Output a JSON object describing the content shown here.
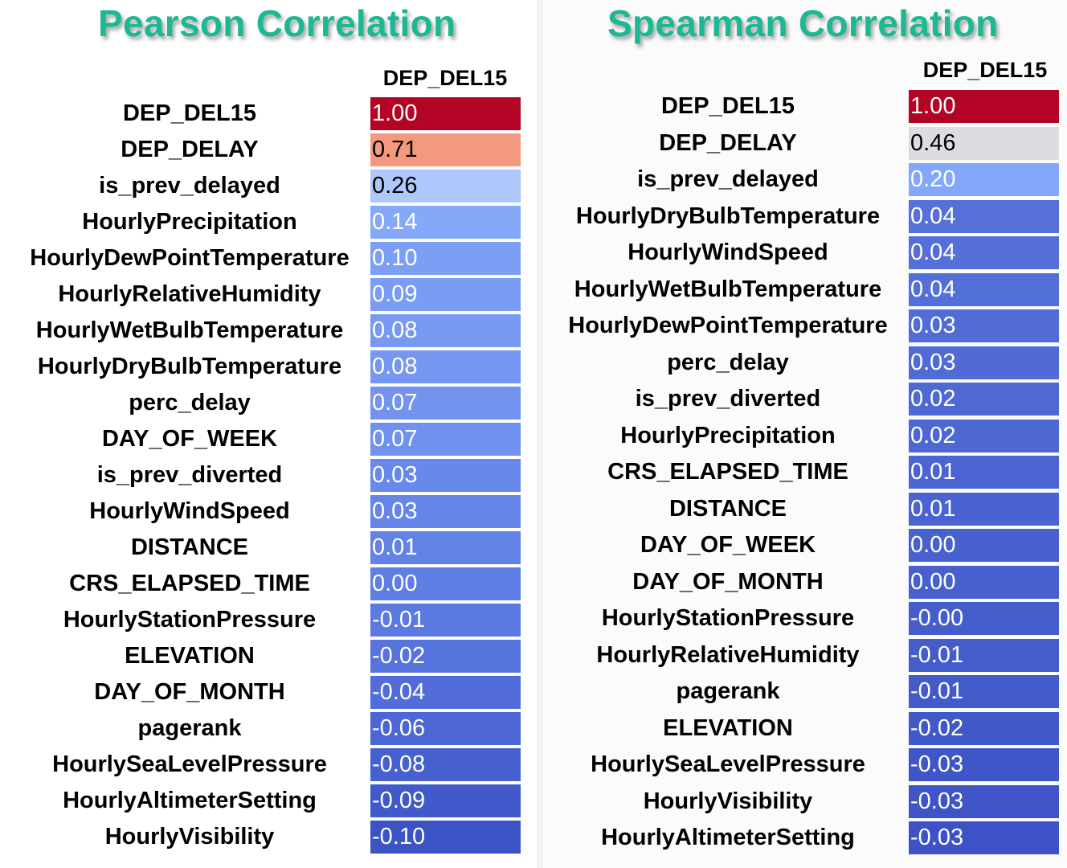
{
  "chart_data": [
    {
      "type": "heatmap",
      "title": "Pearson Correlation",
      "columns": [
        "DEP_DEL15"
      ],
      "rows": [
        {
          "label": "DEP_DEL15",
          "value": 1.0,
          "display": "1.00",
          "color": "#b40426",
          "text_color": "#ffffff"
        },
        {
          "label": "DEP_DELAY",
          "value": 0.71,
          "display": "0.71",
          "color": "#f39a7e",
          "text_color": "#000000"
        },
        {
          "label": "is_prev_delayed",
          "value": 0.26,
          "display": "0.26",
          "color": "#aec8fb",
          "text_color": "#000000"
        },
        {
          "label": "HourlyPrecipitation",
          "value": 0.14,
          "display": "0.14",
          "color": "#86a8f8",
          "text_color": "#ffffff"
        },
        {
          "label": "HourlyDewPointTemperature",
          "value": 0.1,
          "display": "0.10",
          "color": "#7d9ef5",
          "text_color": "#ffffff"
        },
        {
          "label": "HourlyRelativeHumidity",
          "value": 0.09,
          "display": "0.09",
          "color": "#7b9cf4",
          "text_color": "#ffffff"
        },
        {
          "label": "HourlyWetBulbTemperature",
          "value": 0.08,
          "display": "0.08",
          "color": "#7899f2",
          "text_color": "#ffffff"
        },
        {
          "label": "HourlyDryBulbTemperature",
          "value": 0.08,
          "display": "0.08",
          "color": "#7697f1",
          "text_color": "#ffffff"
        },
        {
          "label": "perc_delay",
          "value": 0.07,
          "display": "0.07",
          "color": "#7393ef",
          "text_color": "#ffffff"
        },
        {
          "label": "DAY_OF_WEEK",
          "value": 0.07,
          "display": "0.07",
          "color": "#7191ee",
          "text_color": "#ffffff"
        },
        {
          "label": "is_prev_diverted",
          "value": 0.03,
          "display": "0.03",
          "color": "#6988eb",
          "text_color": "#ffffff"
        },
        {
          "label": "HourlyWindSpeed",
          "value": 0.03,
          "display": "0.03",
          "color": "#6685e9",
          "text_color": "#ffffff"
        },
        {
          "label": "DISTANCE",
          "value": 0.01,
          "display": "0.01",
          "color": "#6282e6",
          "text_color": "#ffffff"
        },
        {
          "label": "CRS_ELAPSED_TIME",
          "value": 0.0,
          "display": "0.00",
          "color": "#5e7ee4",
          "text_color": "#ffffff"
        },
        {
          "label": "HourlyStationPressure",
          "value": -0.01,
          "display": "-0.01",
          "color": "#5b79e1",
          "text_color": "#ffffff"
        },
        {
          "label": "ELEVATION",
          "value": -0.02,
          "display": "-0.02",
          "color": "#5773dd",
          "text_color": "#ffffff"
        },
        {
          "label": "DAY_OF_MONTH",
          "value": -0.04,
          "display": "-0.04",
          "color": "#526dd9",
          "text_color": "#ffffff"
        },
        {
          "label": "pagerank",
          "value": -0.06,
          "display": "-0.06",
          "color": "#4c66d4",
          "text_color": "#ffffff"
        },
        {
          "label": "HourlySeaLevelPressure",
          "value": -0.08,
          "display": "-0.08",
          "color": "#4760d0",
          "text_color": "#ffffff"
        },
        {
          "label": "HourlyAltimeterSetting",
          "value": -0.09,
          "display": "-0.09",
          "color": "#4259cb",
          "text_color": "#ffffff"
        },
        {
          "label": "HourlyVisibility",
          "value": -0.1,
          "display": "-0.10",
          "color": "#3c53c6",
          "text_color": "#ffffff"
        }
      ]
    },
    {
      "type": "heatmap",
      "title": "Spearman Correlation",
      "columns": [
        "DEP_DEL15"
      ],
      "rows": [
        {
          "label": "DEP_DEL15",
          "value": 1.0,
          "display": "1.00",
          "color": "#b40426",
          "text_color": "#ffffff"
        },
        {
          "label": "DEP_DELAY",
          "value": 0.46,
          "display": "0.46",
          "color": "#dcdde1",
          "text_color": "#000000"
        },
        {
          "label": "is_prev_delayed",
          "value": 0.2,
          "display": "0.20",
          "color": "#85a7f9",
          "text_color": "#ffffff"
        },
        {
          "label": "HourlyDryBulbTemperature",
          "value": 0.04,
          "display": "0.04",
          "color": "#5571d9",
          "text_color": "#ffffff"
        },
        {
          "label": "HourlyWindSpeed",
          "value": 0.04,
          "display": "0.04",
          "color": "#5470d8",
          "text_color": "#ffffff"
        },
        {
          "label": "HourlyWetBulbTemperature",
          "value": 0.04,
          "display": "0.04",
          "color": "#536fd8",
          "text_color": "#ffffff"
        },
        {
          "label": "HourlyDewPointTemperature",
          "value": 0.03,
          "display": "0.03",
          "color": "#516cd6",
          "text_color": "#ffffff"
        },
        {
          "label": "perc_delay",
          "value": 0.03,
          "display": "0.03",
          "color": "#506bd5",
          "text_color": "#ffffff"
        },
        {
          "label": "is_prev_diverted",
          "value": 0.02,
          "display": "0.02",
          "color": "#4e68d4",
          "text_color": "#ffffff"
        },
        {
          "label": "HourlyPrecipitation",
          "value": 0.02,
          "display": "0.02",
          "color": "#4d67d3",
          "text_color": "#ffffff"
        },
        {
          "label": "CRS_ELAPSED_TIME",
          "value": 0.01,
          "display": "0.01",
          "color": "#4b64d1",
          "text_color": "#ffffff"
        },
        {
          "label": "DISTANCE",
          "value": 0.01,
          "display": "0.01",
          "color": "#4a63d0",
          "text_color": "#ffffff"
        },
        {
          "label": "DAY_OF_WEEK",
          "value": 0.0,
          "display": "0.00",
          "color": "#4861cf",
          "text_color": "#ffffff"
        },
        {
          "label": "DAY_OF_MONTH",
          "value": 0.0,
          "display": "0.00",
          "color": "#4760ce",
          "text_color": "#ffffff"
        },
        {
          "label": "HourlyStationPressure",
          "value": -0.0,
          "display": "-0.00",
          "color": "#465ecd",
          "text_color": "#ffffff"
        },
        {
          "label": "HourlyRelativeHumidity",
          "value": -0.01,
          "display": "-0.01",
          "color": "#445ccc",
          "text_color": "#ffffff"
        },
        {
          "label": "pagerank",
          "value": -0.01,
          "display": "-0.01",
          "color": "#435acb",
          "text_color": "#ffffff"
        },
        {
          "label": "ELEVATION",
          "value": -0.02,
          "display": "-0.02",
          "color": "#4158c9",
          "text_color": "#ffffff"
        },
        {
          "label": "HourlySeaLevelPressure",
          "value": -0.03,
          "display": "-0.03",
          "color": "#3f56c8",
          "text_color": "#ffffff"
        },
        {
          "label": "HourlyVisibility",
          "value": -0.03,
          "display": "-0.03",
          "color": "#3e54c7",
          "text_color": "#ffffff"
        },
        {
          "label": "HourlyAltimeterSetting",
          "value": -0.03,
          "display": "-0.03",
          "color": "#3c52c6",
          "text_color": "#ffffff"
        }
      ]
    }
  ]
}
